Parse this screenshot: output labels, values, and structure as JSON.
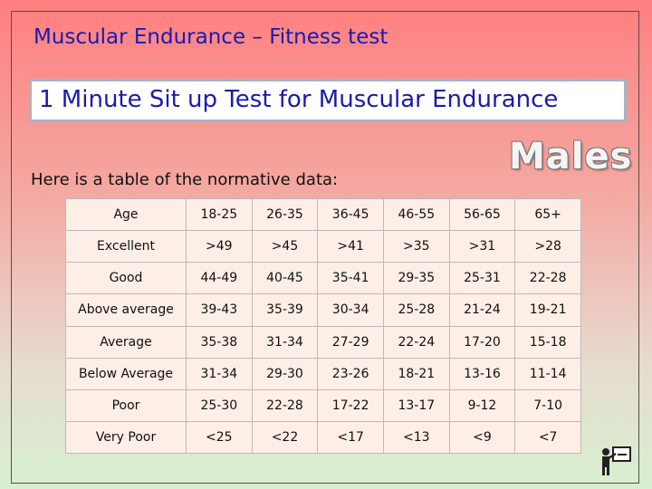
{
  "title": "Muscular Endurance – Fitness test",
  "subtitle": "1 Minute Sit up Test for Muscular Endurance",
  "badge": "Males",
  "intro": "Here is a table of the normative data:",
  "table": {
    "header": [
      "Age",
      "18-25",
      "26-35",
      "36-45",
      "46-55",
      "56-65",
      "65+"
    ],
    "rows": [
      [
        "Excellent",
        ">49",
        ">45",
        ">41",
        ">35",
        ">31",
        ">28"
      ],
      [
        "Good",
        "44-49",
        "40-45",
        "35-41",
        "29-35",
        "25-31",
        "22-28"
      ],
      [
        "Above average",
        "39-43",
        "35-39",
        "30-34",
        "25-28",
        "21-24",
        "19-21"
      ],
      [
        "Average",
        "35-38",
        "31-34",
        "27-29",
        "22-24",
        "17-20",
        "15-18"
      ],
      [
        "Below Average",
        "31-34",
        "29-30",
        "23-26",
        "18-21",
        "13-16",
        "11-14"
      ],
      [
        "Poor",
        "25-30",
        "22-28",
        "17-22",
        "13-17",
        "9-12",
        "7-10"
      ],
      [
        "Very Poor",
        "<25",
        "<22",
        "<17",
        "<13",
        "<9",
        "<7"
      ]
    ]
  },
  "icons": {
    "corner": "teacher-at-board-icon"
  },
  "colors": {
    "title": "#1a1ab0",
    "table_bg": "#fdeee6"
  }
}
